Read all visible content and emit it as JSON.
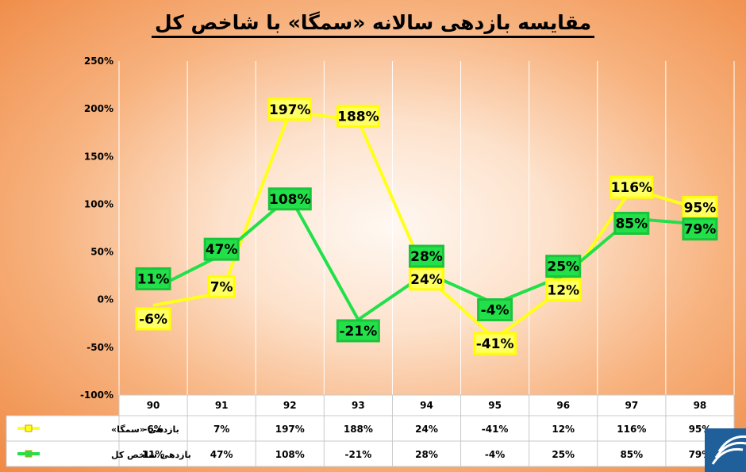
{
  "chart_data": {
    "type": "line",
    "title": "مقایسه بازدهی سالانه «سمگا» با شاخص کل",
    "categories": [
      "90",
      "91",
      "92",
      "93",
      "94",
      "95",
      "96",
      "97",
      "98"
    ],
    "y_ticks": [
      "250%",
      "200%",
      "150%",
      "100%",
      "50%",
      "0%",
      "-50%",
      "-100%"
    ],
    "ylim": [
      -100,
      250
    ],
    "grid": "vertical",
    "legend": "table-left",
    "series": [
      {
        "name": "بازدهی «سمگا»",
        "color": "#ffff1a",
        "values": [
          -6,
          7,
          197,
          188,
          24,
          -41,
          12,
          116,
          95
        ],
        "labels": [
          "-6%",
          "7%",
          "197%",
          "188%",
          "24%",
          "-41%",
          "12%",
          "116%",
          "95%"
        ]
      },
      {
        "name": "بازدهی شاخص کل",
        "color": "#22e04a",
        "values": [
          11,
          47,
          108,
          -21,
          28,
          -4,
          25,
          85,
          79
        ],
        "labels": [
          "11%",
          "47%",
          "108%",
          "-21%",
          "28%",
          "-4%",
          "25%",
          "85%",
          "79%"
        ]
      }
    ]
  },
  "colors": {
    "yellow_line": "#ffff1a",
    "green_line": "#22e04a",
    "label_border": "#ffff00",
    "label_green_bg": "#22e04a"
  },
  "logo": {
    "icon": "waves-logo-icon"
  }
}
